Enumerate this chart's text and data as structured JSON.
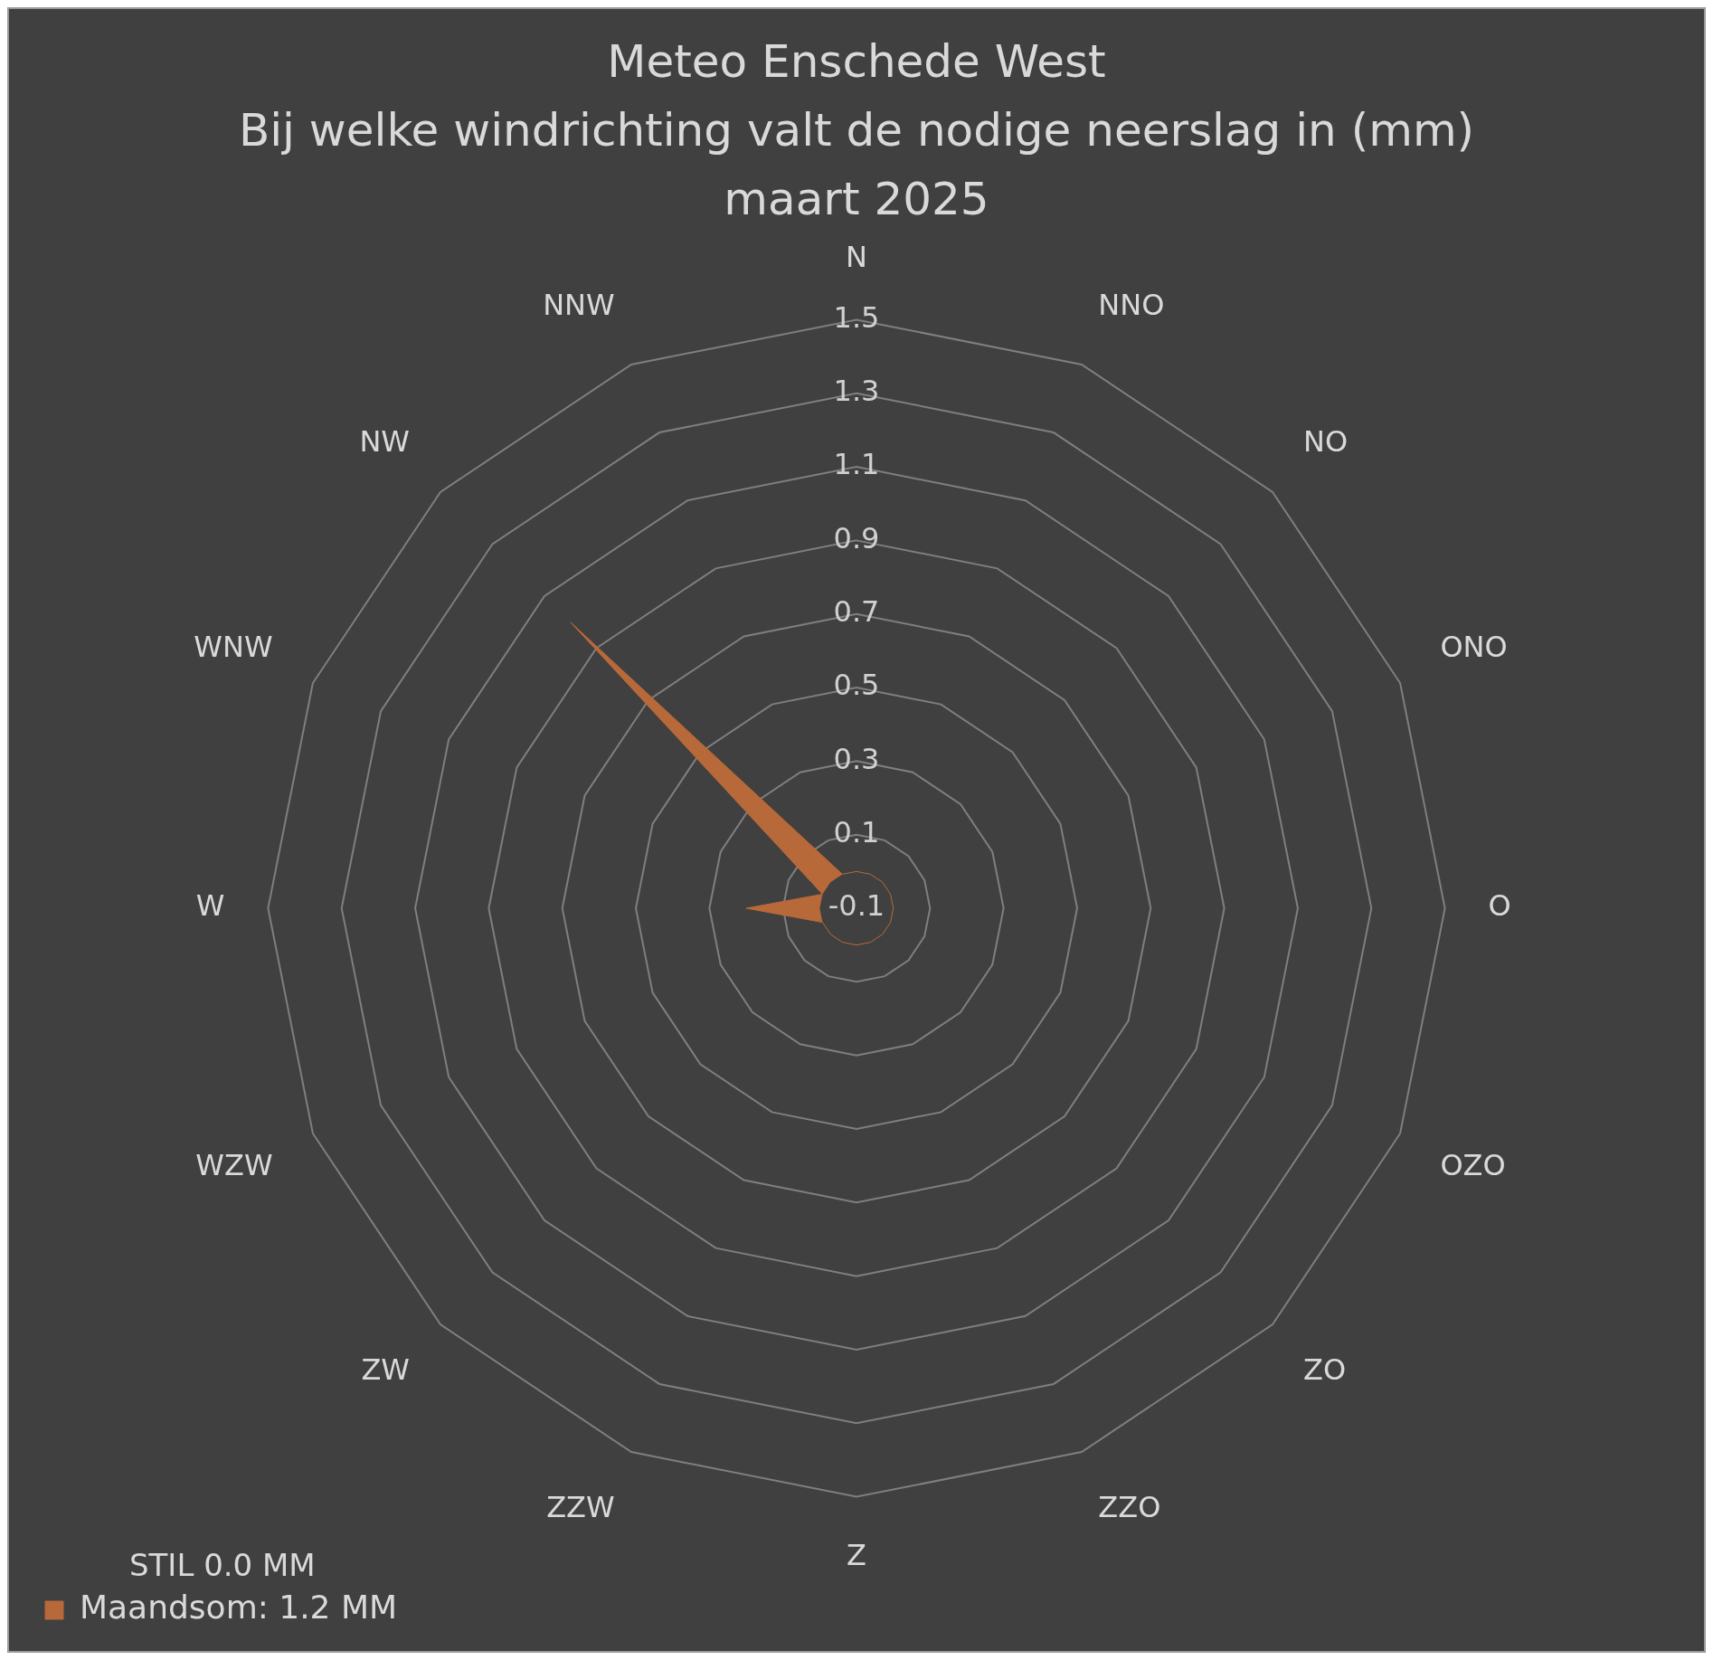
{
  "chart_data": {
    "type": "radar",
    "title": "Meteo Enschede West",
    "subtitle": "Bij welke windrichting valt de nodige neerslag in (mm) maart 2025",
    "categories": [
      "N",
      "NNO",
      "NO",
      "ONO",
      "O",
      "OZO",
      "ZO",
      "ZZO",
      "Z",
      "ZZW",
      "ZW",
      "WZW",
      "W",
      "WNW",
      "NW",
      "NNW"
    ],
    "series": [
      {
        "name": "Maandsom: 1.2 MM",
        "color": "#b8693a",
        "values": [
          0,
          0,
          0,
          0,
          0,
          0,
          0,
          0,
          0,
          0,
          0,
          0,
          0.2,
          0,
          1.0,
          0
        ]
      }
    ],
    "ylim": [
      -0.1,
      1.5
    ],
    "yticks": [
      -0.1,
      0.1,
      0.3,
      0.5,
      0.7,
      0.9,
      1.1,
      1.3,
      1.5
    ],
    "grid": true,
    "legend": "bottom left",
    "annotations": [
      "STIL 0.0 MM"
    ]
  }
}
